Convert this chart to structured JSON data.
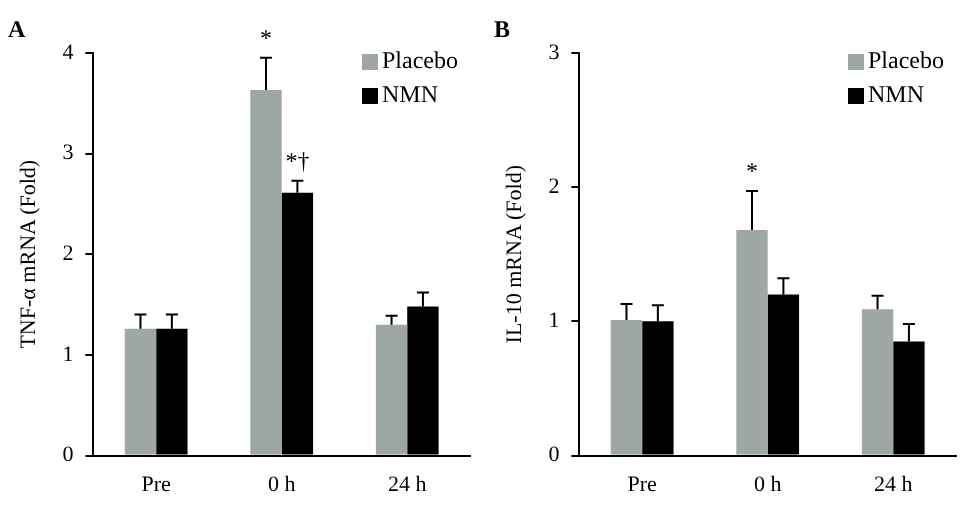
{
  "chart_data": [
    {
      "type": "bar",
      "title": "A",
      "ylabel": "TNF-α mRNA (Fold)",
      "categories": [
        "Pre",
        "0 h",
        "24 h"
      ],
      "series": [
        {
          "name": "Placebo",
          "color": "#9ea7a6",
          "values": [
            1.26,
            3.63,
            1.3
          ],
          "errors": [
            [
              1.26,
              1.4
            ],
            [
              3.63,
              3.95
            ],
            [
              1.3,
              1.39
            ]
          ]
        },
        {
          "name": "NMN",
          "color": "#000000",
          "values": [
            1.26,
            2.61,
            1.48
          ],
          "errors": [
            [
              1.26,
              1.4
            ],
            [
              2.61,
              2.73
            ],
            [
              1.48,
              1.62
            ]
          ]
        }
      ],
      "ylim": [
        0,
        4
      ],
      "yticks": [
        0,
        1,
        2,
        3,
        4
      ],
      "grid": false,
      "legend": "top right",
      "annotations": [
        {
          "text": "*",
          "x": "0 h",
          "y": 3.95
        },
        {
          "text": "*†",
          "x": "0 h",
          "y": 2.73
        }
      ]
    },
    {
      "type": "bar",
      "title": "B",
      "ylabel": "IL-10 mRNA (Fold)",
      "categories": [
        "Pre",
        "0 h",
        "24 h"
      ],
      "series": [
        {
          "name": "Placebo",
          "color": "#9ea7a6",
          "values": [
            1.01,
            1.68,
            1.09
          ],
          "errors": [
            [
              1.01,
              1.13
            ],
            [
              1.68,
              1.97
            ],
            [
              1.09,
              1.19
            ]
          ]
        },
        {
          "name": "NMN",
          "color": "#000000",
          "values": [
            1.0,
            1.2,
            0.85
          ],
          "errors": [
            [
              1.0,
              1.12
            ],
            [
              1.2,
              1.32
            ],
            [
              0.85,
              0.98
            ]
          ]
        }
      ],
      "ylim": [
        0,
        3
      ],
      "yticks": [
        0,
        1,
        2,
        3
      ],
      "grid": false,
      "legend": "top right",
      "annotations": [
        {
          "text": "*",
          "x": "0 h",
          "y": 1.97
        }
      ]
    }
  ]
}
